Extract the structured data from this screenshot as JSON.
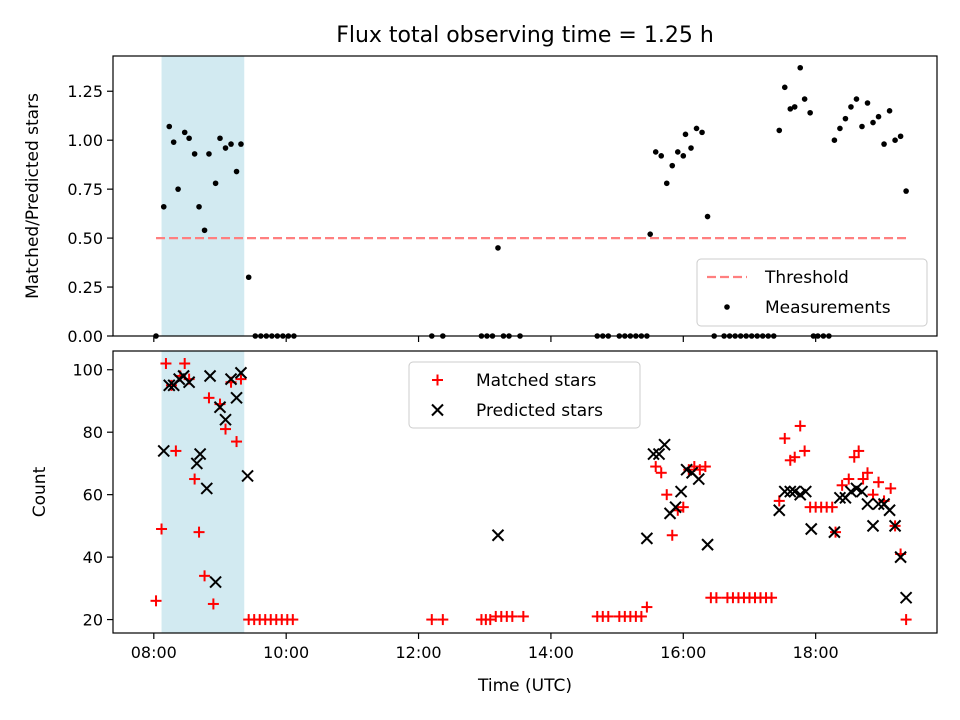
{
  "figure": {
    "title": "Flux total observing time = 1.25 h",
    "xlabel": "Time (UTC)",
    "x_ticks": [
      "08:00",
      "10:00",
      "12:00",
      "14:00",
      "16:00",
      "18:00"
    ],
    "shaded_span": {
      "start": "08:07",
      "end": "09:22",
      "color": "#add8e6"
    }
  },
  "chart_data": [
    {
      "type": "scatter",
      "ylabel": "Matched/Predicted stars",
      "ylim": [
        0,
        1.43
      ],
      "y_ticks": [
        "0.00",
        "0.25",
        "0.50",
        "0.75",
        "1.00",
        "1.25"
      ],
      "threshold": {
        "name": "Threshold",
        "value": 0.5,
        "color": "#ff7f7f",
        "style": "dashed"
      },
      "legend": {
        "position": "lower-right",
        "entries": [
          "Threshold",
          "Measurements"
        ]
      },
      "series": [
        {
          "name": "Measurements",
          "color": "#000000",
          "points": [
            [
              "08:02",
              0.0
            ],
            [
              "08:09",
              0.66
            ],
            [
              "08:14",
              1.07
            ],
            [
              "08:18",
              0.99
            ],
            [
              "08:22",
              0.75
            ],
            [
              "08:28",
              1.04
            ],
            [
              "08:32",
              1.01
            ],
            [
              "08:37",
              0.93
            ],
            [
              "08:41",
              0.66
            ],
            [
              "08:46",
              0.54
            ],
            [
              "08:50",
              0.93
            ],
            [
              "08:56",
              0.78
            ],
            [
              "09:00",
              1.01
            ],
            [
              "09:05",
              0.96
            ],
            [
              "09:10",
              0.98
            ],
            [
              "09:15",
              0.84
            ],
            [
              "09:19",
              0.98
            ],
            [
              "09:26",
              0.3
            ],
            [
              "09:32",
              0.0
            ],
            [
              "09:37",
              0.0
            ],
            [
              "09:42",
              0.0
            ],
            [
              "09:47",
              0.0
            ],
            [
              "09:52",
              0.0
            ],
            [
              "09:57",
              0.0
            ],
            [
              "10:02",
              0.0
            ],
            [
              "10:07",
              0.0
            ],
            [
              "12:12",
              0.0
            ],
            [
              "12:22",
              0.0
            ],
            [
              "12:57",
              0.0
            ],
            [
              "13:02",
              0.0
            ],
            [
              "13:07",
              0.0
            ],
            [
              "13:12",
              0.45
            ],
            [
              "13:17",
              0.0
            ],
            [
              "13:22",
              0.0
            ],
            [
              "13:32",
              0.0
            ],
            [
              "14:42",
              0.0
            ],
            [
              "14:47",
              0.0
            ],
            [
              "14:52",
              0.0
            ],
            [
              "15:02",
              0.0
            ],
            [
              "15:07",
              0.0
            ],
            [
              "15:12",
              0.0
            ],
            [
              "15:17",
              0.0
            ],
            [
              "15:22",
              0.0
            ],
            [
              "15:27",
              0.0
            ],
            [
              "15:30",
              0.52
            ],
            [
              "15:35",
              0.94
            ],
            [
              "15:40",
              0.92
            ],
            [
              "15:45",
              0.78
            ],
            [
              "15:50",
              0.87
            ],
            [
              "15:55",
              0.94
            ],
            [
              "16:00",
              0.92
            ],
            [
              "16:02",
              1.03
            ],
            [
              "16:07",
              0.96
            ],
            [
              "16:12",
              1.06
            ],
            [
              "16:17",
              1.04
            ],
            [
              "16:22",
              0.61
            ],
            [
              "16:28",
              0.0
            ],
            [
              "16:37",
              0.0
            ],
            [
              "16:42",
              0.0
            ],
            [
              "16:47",
              0.0
            ],
            [
              "16:52",
              0.0
            ],
            [
              "16:57",
              0.0
            ],
            [
              "17:02",
              0.0
            ],
            [
              "17:07",
              0.0
            ],
            [
              "17:12",
              0.0
            ],
            [
              "17:17",
              0.0
            ],
            [
              "17:22",
              0.0
            ],
            [
              "17:27",
              1.05
            ],
            [
              "17:32",
              1.27
            ],
            [
              "17:37",
              1.16
            ],
            [
              "17:41",
              1.17
            ],
            [
              "17:46",
              1.37
            ],
            [
              "17:50",
              1.21
            ],
            [
              "17:55",
              1.14
            ],
            [
              "17:58",
              0.0
            ],
            [
              "18:02",
              0.0
            ],
            [
              "18:07",
              0.0
            ],
            [
              "18:12",
              0.0
            ],
            [
              "18:17",
              1.0
            ],
            [
              "18:22",
              1.06
            ],
            [
              "18:27",
              1.11
            ],
            [
              "18:32",
              1.17
            ],
            [
              "18:37",
              1.21
            ],
            [
              "18:42",
              1.07
            ],
            [
              "18:47",
              1.19
            ],
            [
              "18:52",
              1.09
            ],
            [
              "18:57",
              1.12
            ],
            [
              "19:02",
              0.98
            ],
            [
              "19:07",
              1.15
            ],
            [
              "19:12",
              1.0
            ],
            [
              "19:17",
              1.02
            ],
            [
              "19:22",
              0.74
            ]
          ]
        }
      ]
    },
    {
      "type": "scatter",
      "ylabel": "Count",
      "ylim": [
        15.7,
        106
      ],
      "y_ticks": [
        "20",
        "40",
        "60",
        "80",
        "100"
      ],
      "legend": {
        "position": "top-center",
        "entries": [
          "Matched stars",
          "Predicted stars"
        ]
      },
      "series": [
        {
          "name": "Matched stars",
          "color": "#ff0000",
          "marker": "plus",
          "points": [
            [
              "08:02",
              26
            ],
            [
              "08:07",
              49
            ],
            [
              "08:11",
              102
            ],
            [
              "08:16",
              95
            ],
            [
              "08:20",
              74
            ],
            [
              "08:24",
              98
            ],
            [
              "08:28",
              102
            ],
            [
              "08:32",
              97
            ],
            [
              "08:37",
              65
            ],
            [
              "08:41",
              48
            ],
            [
              "08:46",
              34
            ],
            [
              "08:50",
              91
            ],
            [
              "08:54",
              25
            ],
            [
              "09:00",
              89
            ],
            [
              "09:05",
              81
            ],
            [
              "09:10",
              96
            ],
            [
              "09:15",
              77
            ],
            [
              "09:19",
              97
            ],
            [
              "09:26",
              20
            ],
            [
              "09:31",
              20
            ],
            [
              "09:36",
              20
            ],
            [
              "09:41",
              20
            ],
            [
              "09:46",
              20
            ],
            [
              "09:51",
              20
            ],
            [
              "09:56",
              20
            ],
            [
              "10:01",
              20
            ],
            [
              "10:06",
              20
            ],
            [
              "12:12",
              20
            ],
            [
              "12:22",
              20
            ],
            [
              "12:57",
              20
            ],
            [
              "13:01",
              20
            ],
            [
              "13:05",
              20
            ],
            [
              "13:10",
              21
            ],
            [
              "13:15",
              21
            ],
            [
              "13:20",
              21
            ],
            [
              "13:25",
              21
            ],
            [
              "13:35",
              21
            ],
            [
              "14:42",
              21
            ],
            [
              "14:47",
              21
            ],
            [
              "14:52",
              21
            ],
            [
              "15:02",
              21
            ],
            [
              "15:07",
              21
            ],
            [
              "15:12",
              21
            ],
            [
              "15:17",
              21
            ],
            [
              "15:22",
              21
            ],
            [
              "15:27",
              24
            ],
            [
              "15:35",
              69
            ],
            [
              "15:40",
              67
            ],
            [
              "15:45",
              60
            ],
            [
              "15:50",
              47
            ],
            [
              "15:55",
              55
            ],
            [
              "16:00",
              56
            ],
            [
              "16:05",
              68
            ],
            [
              "16:10",
              69
            ],
            [
              "16:15",
              68
            ],
            [
              "16:20",
              69
            ],
            [
              "16:25",
              27
            ],
            [
              "16:30",
              27
            ],
            [
              "16:40",
              27
            ],
            [
              "16:45",
              27
            ],
            [
              "16:50",
              27
            ],
            [
              "16:55",
              27
            ],
            [
              "17:00",
              27
            ],
            [
              "17:05",
              27
            ],
            [
              "17:10",
              27
            ],
            [
              "17:15",
              27
            ],
            [
              "17:20",
              27
            ],
            [
              "17:27",
              58
            ],
            [
              "17:32",
              78
            ],
            [
              "17:37",
              71
            ],
            [
              "17:41",
              72
            ],
            [
              "17:46",
              82
            ],
            [
              "17:50",
              74
            ],
            [
              "17:55",
              56
            ],
            [
              "18:00",
              56
            ],
            [
              "18:05",
              56
            ],
            [
              "18:10",
              56
            ],
            [
              "18:15",
              56
            ],
            [
              "18:18",
              48
            ],
            [
              "18:24",
              63
            ],
            [
              "18:30",
              65
            ],
            [
              "18:35",
              72
            ],
            [
              "18:39",
              74
            ],
            [
              "18:43",
              65
            ],
            [
              "18:47",
              67
            ],
            [
              "18:52",
              60
            ],
            [
              "18:57",
              64
            ],
            [
              "19:02",
              58
            ],
            [
              "19:08",
              62
            ],
            [
              "19:12",
              50
            ],
            [
              "19:17",
              41
            ],
            [
              "19:22",
              20
            ]
          ]
        },
        {
          "name": "Predicted stars",
          "color": "#000000",
          "marker": "x",
          "points": [
            [
              "08:09",
              74
            ],
            [
              "08:14",
              95
            ],
            [
              "08:18",
              95
            ],
            [
              "08:23",
              97
            ],
            [
              "08:27",
              98
            ],
            [
              "08:32",
              96
            ],
            [
              "08:39",
              70
            ],
            [
              "08:42",
              73
            ],
            [
              "08:48",
              62
            ],
            [
              "08:51",
              98
            ],
            [
              "08:56",
              32
            ],
            [
              "09:00",
              88
            ],
            [
              "09:05",
              84
            ],
            [
              "09:10",
              97
            ],
            [
              "09:15",
              91
            ],
            [
              "09:19",
              99
            ],
            [
              "09:25",
              66
            ],
            [
              "13:12",
              47
            ],
            [
              "15:27",
              46
            ],
            [
              "15:33",
              73
            ],
            [
              "15:38",
              73
            ],
            [
              "15:43",
              76
            ],
            [
              "15:48",
              54
            ],
            [
              "15:53",
              56
            ],
            [
              "15:58",
              61
            ],
            [
              "16:03",
              68
            ],
            [
              "16:08",
              67
            ],
            [
              "16:14",
              65
            ],
            [
              "16:22",
              44
            ],
            [
              "17:27",
              55
            ],
            [
              "17:32",
              61
            ],
            [
              "17:37",
              61
            ],
            [
              "17:41",
              61
            ],
            [
              "17:46",
              60
            ],
            [
              "17:51",
              61
            ],
            [
              "17:56",
              49
            ],
            [
              "18:17",
              48
            ],
            [
              "18:22",
              59
            ],
            [
              "18:27",
              59
            ],
            [
              "18:32",
              61
            ],
            [
              "18:37",
              62
            ],
            [
              "18:42",
              61
            ],
            [
              "18:47",
              57
            ],
            [
              "18:52",
              50
            ],
            [
              "18:57",
              57
            ],
            [
              "19:02",
              57
            ],
            [
              "19:07",
              55
            ],
            [
              "19:12",
              50
            ],
            [
              "19:17",
              40
            ],
            [
              "19:22",
              27
            ]
          ]
        }
      ]
    }
  ]
}
